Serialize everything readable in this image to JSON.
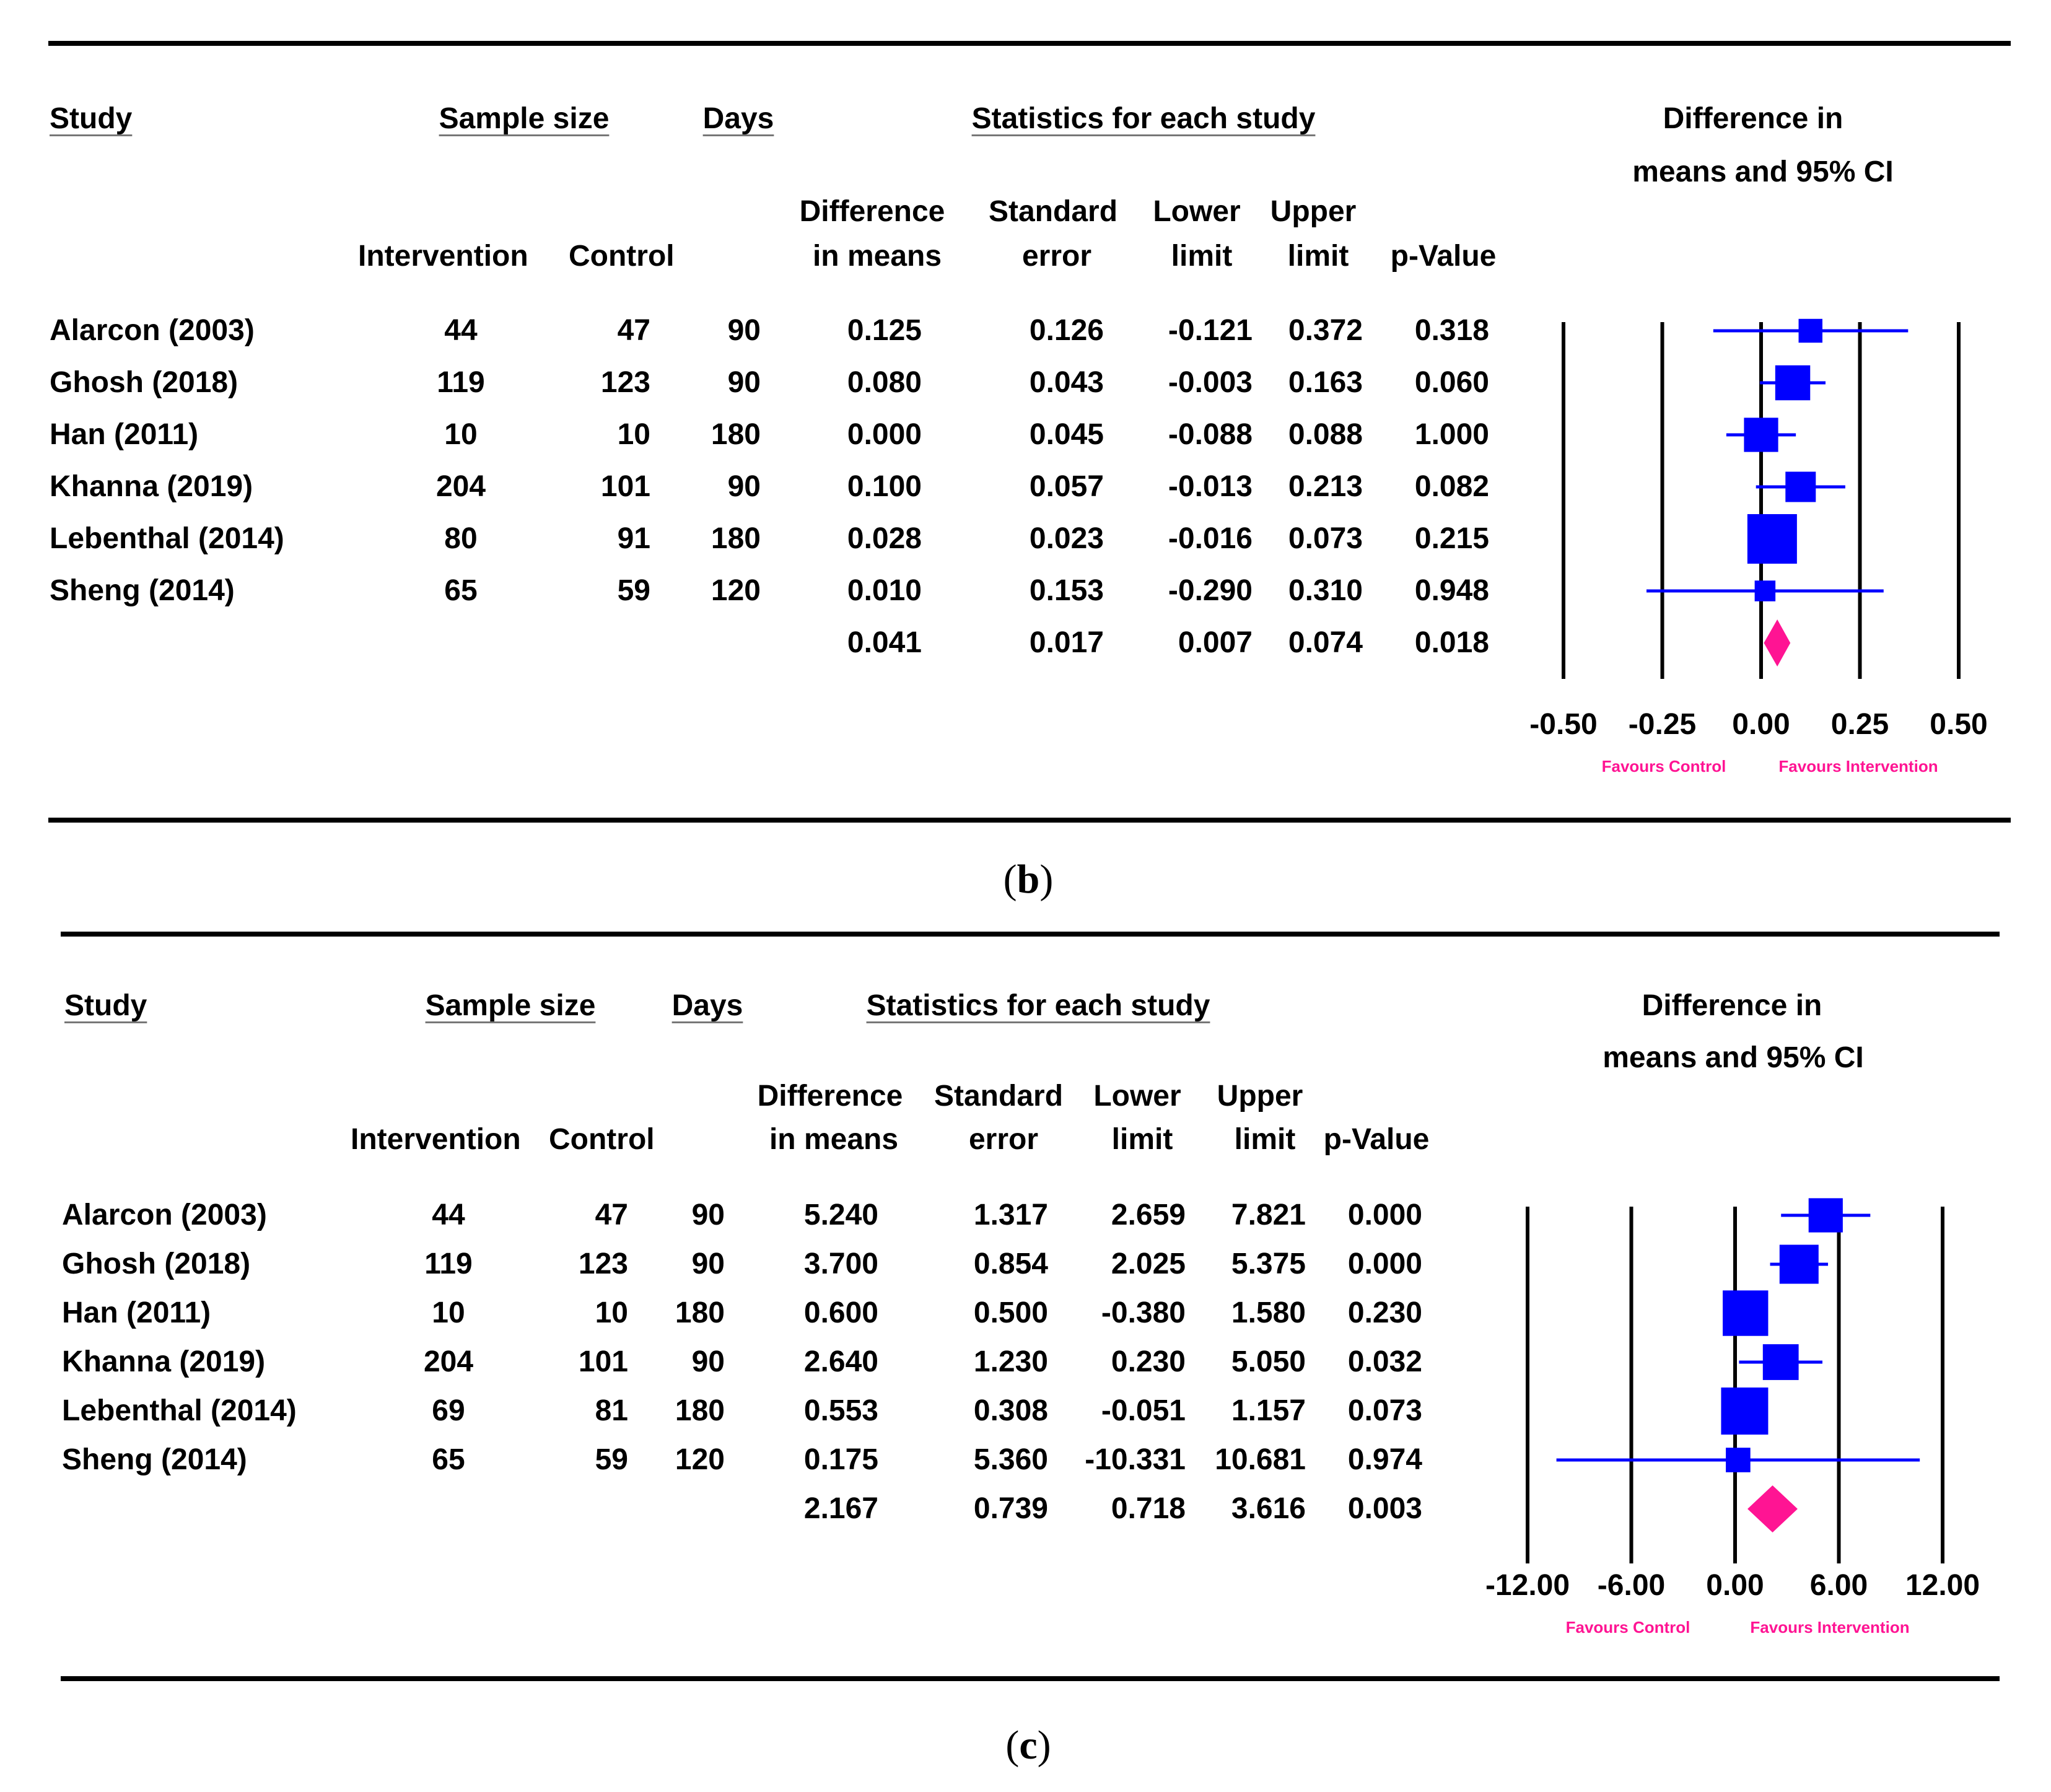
{
  "chart_data": [
    {
      "type": "forest",
      "panel_label": "b",
      "headers": {
        "study": "Study",
        "sample_size": "Sample size",
        "days": "Days",
        "statistics": "Statistics for each study",
        "plot_title_line1": "Difference in",
        "plot_title_line2": "means and 95% CI",
        "intervention": "Intervention",
        "control": "Control",
        "diff_line1": "Difference",
        "diff_line2": "in means",
        "se_line1": "Standard",
        "se_line2": "error",
        "lower_line1": "Lower",
        "lower_line2": "limit",
        "upper_line1": "Upper",
        "upper_line2": "limit",
        "p_value": "p-Value"
      },
      "rows": [
        {
          "study": "Alarcon  (2003)",
          "intervention": "44",
          "control": "47",
          "days": "90",
          "diff": "0.125",
          "se": "0.126",
          "lower": "-0.121",
          "upper": "0.372",
          "p": "0.318",
          "est": 0.125,
          "lo": -0.121,
          "hi": 0.372,
          "weight": 0.33
        },
        {
          "study": "Ghosh  (2018)",
          "intervention": "119",
          "control": "123",
          "days": "90",
          "diff": "0.080",
          "se": "0.043",
          "lower": "-0.003",
          "upper": "0.163",
          "p": "0.060",
          "est": 0.08,
          "lo": -0.003,
          "hi": 0.163,
          "weight": 0.62
        },
        {
          "study": "Han  (2011)",
          "intervention": "10",
          "control": "10",
          "days": "180",
          "diff": "0.000",
          "se": "0.045",
          "lower": "-0.088",
          "upper": "0.088",
          "p": "1.000",
          "est": 0.0,
          "lo": -0.088,
          "hi": 0.088,
          "weight": 0.6
        },
        {
          "study": "Khanna  (2019)",
          "intervention": "204",
          "control": "101",
          "days": "90",
          "diff": "0.100",
          "se": "0.057",
          "lower": "-0.013",
          "upper": "0.213",
          "p": "0.082",
          "est": 0.1,
          "lo": -0.013,
          "hi": 0.213,
          "weight": 0.5
        },
        {
          "study": "Lebenthal  (2014)",
          "intervention": "80",
          "control": "91",
          "days": "180",
          "diff": "0.028",
          "se": "0.023",
          "lower": "-0.016",
          "upper": "0.073",
          "p": "0.215",
          "est": 0.028,
          "lo": -0.016,
          "hi": 0.073,
          "weight": 1.0
        },
        {
          "study": "Sheng  (2014)",
          "intervention": "65",
          "control": "59",
          "days": "120",
          "diff": "0.010",
          "se": "0.153",
          "lower": "-0.290",
          "upper": "0.310",
          "p": "0.948",
          "est": 0.01,
          "lo": -0.29,
          "hi": 0.31,
          "weight": 0.25
        }
      ],
      "summary": {
        "diff": "0.041",
        "se": "0.017",
        "lower": "0.007",
        "upper": "0.074",
        "p": "0.018",
        "est": 0.041,
        "lo": 0.007,
        "hi": 0.074
      },
      "xlim": [
        -0.5,
        0.5
      ],
      "ticks": [
        -0.5,
        -0.25,
        0.0,
        0.25,
        0.5
      ],
      "tick_labels": [
        "-0.50",
        "-0.25",
        "0.00",
        "0.25",
        "0.50"
      ],
      "favours_left": "Favours Control",
      "favours_right": "Favours Intervention"
    },
    {
      "type": "forest",
      "panel_label": "c",
      "headers": {
        "study": "Study",
        "sample_size": "Sample size",
        "days": "Days",
        "statistics": "Statistics for each study",
        "plot_title_line1": "Difference in",
        "plot_title_line2": "means and 95% CI",
        "intervention": "Intervention",
        "control": "Control",
        "diff_line1": "Difference",
        "diff_line2": "in means",
        "se_line1": "Standard",
        "se_line2": "error",
        "lower_line1": "Lower",
        "lower_line2": "limit",
        "upper_line1": "Upper",
        "upper_line2": "limit",
        "p_value": "p-Value"
      },
      "rows": [
        {
          "study": "Alarcon  (2003)",
          "intervention": "44",
          "control": "47",
          "days": "90",
          "diff": "5.240",
          "se": "1.317",
          "lower": "2.659",
          "upper": "7.821",
          "p": "0.000",
          "est": 5.24,
          "lo": 2.659,
          "hi": 7.821,
          "weight": 0.6
        },
        {
          "study": "Ghosh  (2018)",
          "intervention": "119",
          "control": "123",
          "days": "90",
          "diff": "3.700",
          "se": "0.854",
          "lower": "2.025",
          "upper": "5.375",
          "p": "0.000",
          "est": 3.7,
          "lo": 2.025,
          "hi": 5.375,
          "weight": 0.75
        },
        {
          "study": "Han  (2011)",
          "intervention": "10",
          "control": "10",
          "days": "180",
          "diff": "0.600",
          "se": "0.500",
          "lower": "-0.380",
          "upper": "1.580",
          "p": "0.230",
          "est": 0.6,
          "lo": -0.38,
          "hi": 1.58,
          "weight": 0.95
        },
        {
          "study": "Khanna  (2019)",
          "intervention": "204",
          "control": "101",
          "days": "90",
          "diff": "2.640",
          "se": "1.230",
          "lower": "0.230",
          "upper": "5.050",
          "p": "0.032",
          "est": 2.64,
          "lo": 0.23,
          "hi": 5.05,
          "weight": 0.65
        },
        {
          "study": "Lebenthal  (2014)",
          "intervention": "69",
          "control": "81",
          "days": "180",
          "diff": "0.553",
          "se": "0.308",
          "lower": "-0.051",
          "upper": "1.157",
          "p": "0.073",
          "est": 0.553,
          "lo": -0.051,
          "hi": 1.157,
          "weight": 1.0
        },
        {
          "study": "Sheng  (2014)",
          "intervention": "65",
          "control": "59",
          "days": "120",
          "diff": "0.175",
          "se": "5.360",
          "lower": "-10.331",
          "upper": "10.681",
          "p": "0.974",
          "est": 0.175,
          "lo": -10.331,
          "hi": 10.681,
          "weight": 0.3
        }
      ],
      "summary": {
        "diff": "2.167",
        "se": "0.739",
        "lower": "0.718",
        "upper": "3.616",
        "p": "0.003",
        "est": 2.167,
        "lo": 0.718,
        "hi": 3.616
      },
      "xlim": [
        -12,
        12
      ],
      "ticks": [
        -12,
        -6,
        0,
        6,
        12
      ],
      "tick_labels": [
        "-12.00",
        "-6.00",
        "0.00",
        "6.00",
        "12.00"
      ],
      "favours_left": "Favours Control",
      "favours_right": "Favours Intervention"
    }
  ]
}
